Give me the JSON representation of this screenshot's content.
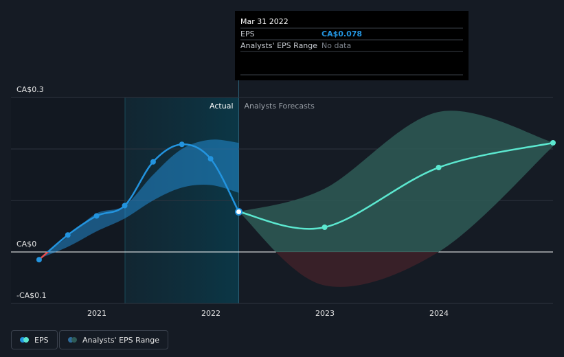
{
  "chart_data": {
    "type": "line",
    "y_axis": {
      "min": -0.1,
      "max": 0.3,
      "ticks": [
        {
          "value": 0.3,
          "label": "CA$0.3"
        },
        {
          "value": 0,
          "label": "CA$0"
        },
        {
          "value": -0.1,
          "label": "-CA$0.1"
        }
      ]
    },
    "x_axis": {
      "min": "2020-04-01",
      "max": "2024-12-31",
      "ticks": [
        {
          "date": "2021-01-01",
          "label": "2021"
        },
        {
          "date": "2022-01-01",
          "label": "2022"
        },
        {
          "date": "2023-01-01",
          "label": "2023"
        },
        {
          "date": "2024-01-01",
          "label": "2024"
        }
      ]
    },
    "highlight_period": {
      "start": "2021-04-01",
      "end": "2022-03-31"
    },
    "period_labels": {
      "actual": "Actual",
      "forecast": "Analysts Forecasts"
    },
    "series": [
      {
        "name": "EPS",
        "kind": "actual",
        "color": "#2394df",
        "negative_color": "#e64d4d",
        "points": [
          {
            "date": "2020-06-30",
            "value": -0.015
          },
          {
            "date": "2020-09-30",
            "value": 0.033
          },
          {
            "date": "2020-12-31",
            "value": 0.07
          },
          {
            "date": "2021-03-31",
            "value": 0.09
          },
          {
            "date": "2021-06-30",
            "value": 0.175
          },
          {
            "date": "2021-09-30",
            "value": 0.209
          },
          {
            "date": "2021-12-31",
            "value": 0.181
          },
          {
            "date": "2022-03-31",
            "value": 0.078
          }
        ]
      },
      {
        "name": "EPS",
        "kind": "forecast",
        "color": "#5ce8d0",
        "points": [
          {
            "date": "2022-03-31",
            "value": 0.078
          },
          {
            "date": "2022-12-31",
            "value": 0.048
          },
          {
            "date": "2023-12-31",
            "value": 0.164
          },
          {
            "date": "2024-12-31",
            "value": 0.212
          }
        ]
      },
      {
        "name": "Analysts' EPS Range",
        "kind": "range_actual",
        "color": "#2394df",
        "points": [
          {
            "date": "2020-06-30",
            "low": -0.013,
            "high": -0.013
          },
          {
            "date": "2020-09-30",
            "low": 0.01,
            "high": 0.03
          },
          {
            "date": "2020-12-31",
            "low": 0.04,
            "high": 0.075
          },
          {
            "date": "2021-03-31",
            "low": 0.065,
            "high": 0.09
          },
          {
            "date": "2021-06-30",
            "low": 0.1,
            "high": 0.15
          },
          {
            "date": "2021-09-30",
            "low": 0.125,
            "high": 0.2
          },
          {
            "date": "2021-12-31",
            "low": 0.13,
            "high": 0.218
          },
          {
            "date": "2022-03-31",
            "low": 0.115,
            "high": 0.212
          }
        ]
      },
      {
        "name": "Analysts' EPS Range",
        "kind": "range_forecast",
        "color": "#2e5a56",
        "points": [
          {
            "date": "2022-03-31",
            "low": 0.078,
            "high": 0.078
          },
          {
            "date": "2022-12-31",
            "low": -0.065,
            "high": 0.123
          },
          {
            "date": "2023-12-31",
            "low": 0.0,
            "high": 0.272
          },
          {
            "date": "2024-12-31",
            "low": 0.205,
            "high": 0.213
          }
        ]
      }
    ]
  },
  "tooltip": {
    "date": "Mar 31 2022",
    "rows": [
      {
        "label": "EPS",
        "value": "CA$0.078",
        "value_color": "#2394df"
      },
      {
        "label": "Analysts' EPS Range",
        "value": "No data",
        "value_color": "#7d838c"
      }
    ]
  },
  "legend": {
    "items": [
      {
        "label": "EPS",
        "colors": [
          "#2394df",
          "#5ce8d0"
        ]
      },
      {
        "label": "Analysts' EPS Range",
        "colors": [
          "#2e6c9c",
          "#2e5a56"
        ]
      }
    ]
  }
}
